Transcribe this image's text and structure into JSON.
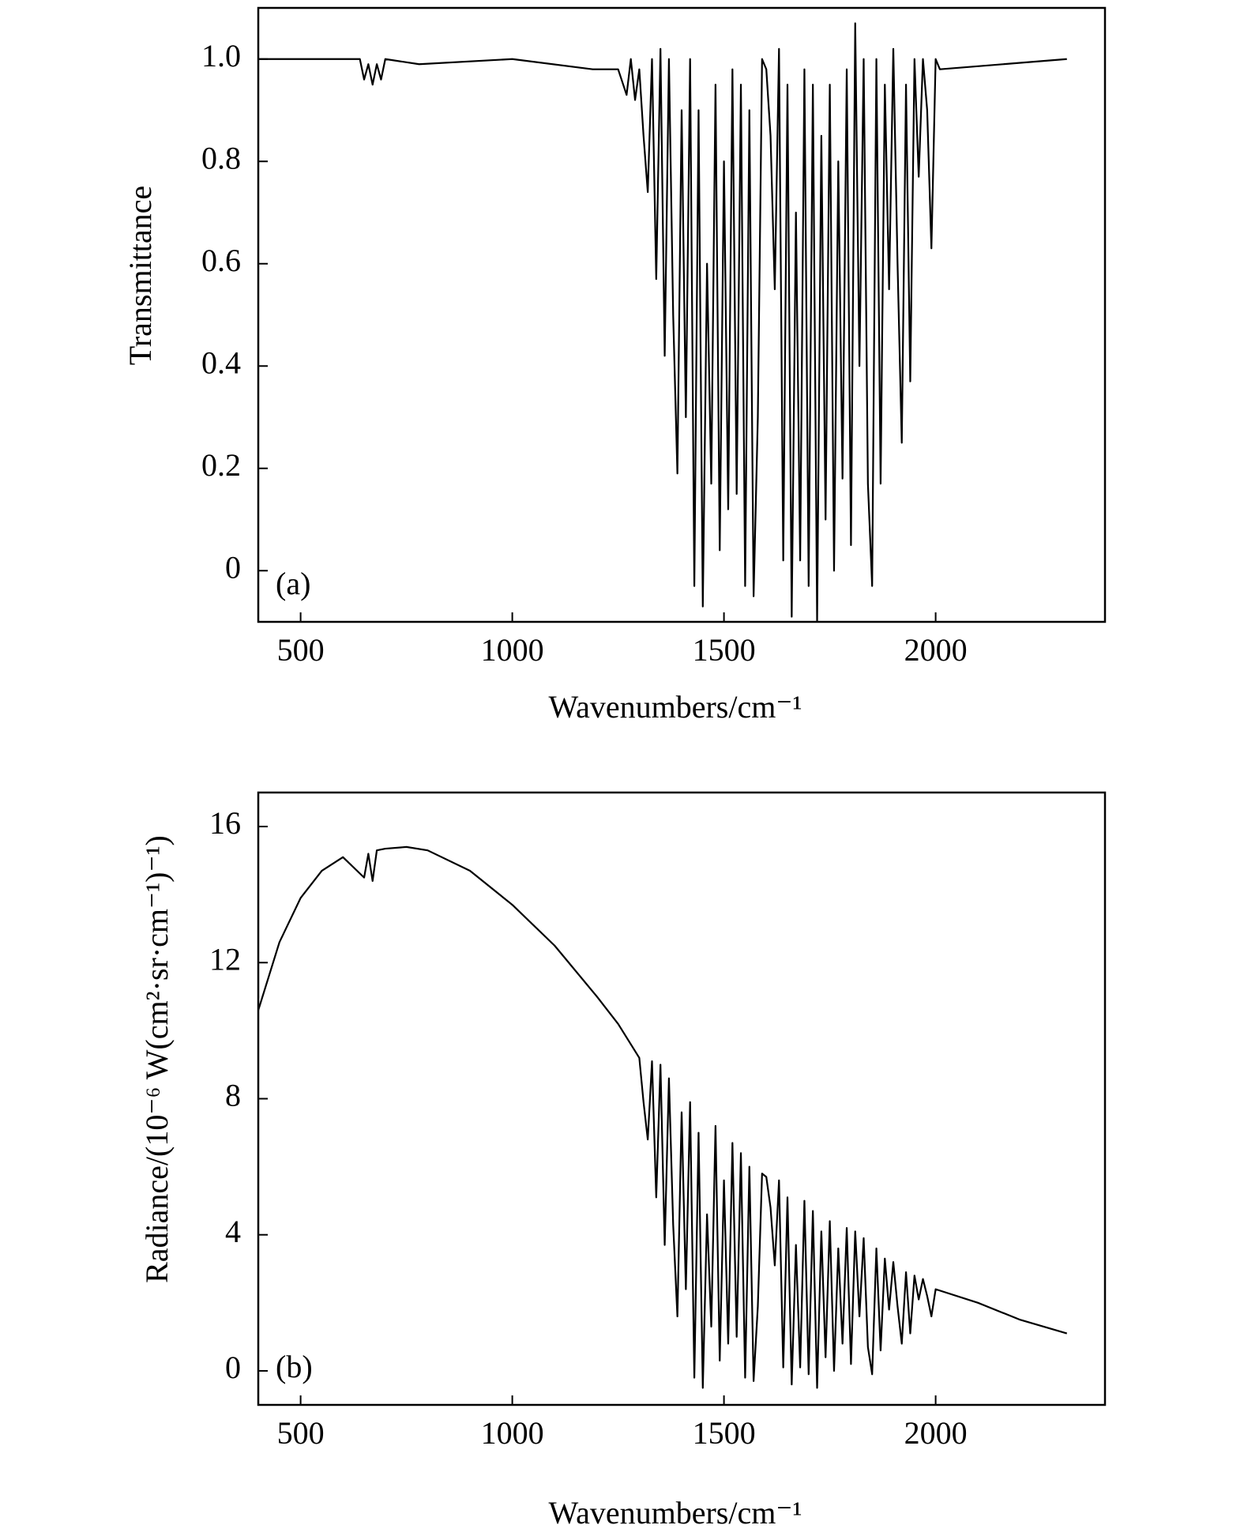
{
  "chart_data": [
    {
      "type": "line",
      "panel_label": "(a)",
      "xlabel": "Wavenumbers/cm⁻¹",
      "ylabel": "Transmittance",
      "xlim": [
        400,
        2400
      ],
      "xticks": [
        500,
        1000,
        1500,
        2000
      ],
      "ylim": [
        -0.1,
        1.1
      ],
      "yticks": [
        0,
        0.2,
        0.4,
        0.6,
        0.8,
        {
          "value": 1,
          "label": "1.0"
        }
      ],
      "x": [
        400,
        640,
        650,
        660,
        670,
        680,
        690,
        700,
        780,
        1000,
        1190,
        1250,
        1270,
        1280,
        1290,
        1300,
        1310,
        1320,
        1330,
        1340,
        1350,
        1360,
        1370,
        1380,
        1390,
        1400,
        1410,
        1420,
        1430,
        1440,
        1450,
        1460,
        1470,
        1480,
        1490,
        1500,
        1510,
        1520,
        1530,
        1540,
        1550,
        1560,
        1570,
        1580,
        1590,
        1600,
        1610,
        1620,
        1630,
        1640,
        1650,
        1660,
        1670,
        1680,
        1690,
        1700,
        1710,
        1720,
        1730,
        1740,
        1750,
        1760,
        1770,
        1780,
        1790,
        1800,
        1810,
        1820,
        1830,
        1840,
        1850,
        1860,
        1870,
        1880,
        1890,
        1900,
        1910,
        1920,
        1930,
        1940,
        1950,
        1960,
        1970,
        1980,
        1990,
        2000,
        2010,
        2310
      ],
      "series": [
        {
          "color": "#000000",
          "values": [
            1.0,
            1.0,
            0.96,
            0.99,
            0.95,
            0.99,
            0.96,
            1.0,
            0.99,
            1.0,
            0.98,
            0.98,
            0.93,
            1.0,
            0.92,
            0.98,
            0.85,
            0.74,
            1.0,
            0.57,
            1.02,
            0.42,
            1.0,
            0.5,
            0.19,
            0.9,
            0.3,
            1.0,
            -0.03,
            0.9,
            -0.07,
            0.6,
            0.17,
            0.95,
            0.04,
            0.8,
            0.12,
            0.98,
            0.15,
            0.95,
            -0.03,
            0.9,
            -0.05,
            0.3,
            1.0,
            0.98,
            0.85,
            0.55,
            1.02,
            0.02,
            0.95,
            -0.09,
            0.7,
            0.02,
            0.98,
            -0.03,
            0.95,
            -0.1,
            0.85,
            0.1,
            0.95,
            0.0,
            0.8,
            0.18,
            0.98,
            0.05,
            1.07,
            0.4,
            1.0,
            0.17,
            -0.03,
            1.0,
            0.17,
            0.95,
            0.55,
            1.02,
            0.6,
            0.25,
            0.95,
            0.37,
            1.0,
            0.77,
            1.0,
            0.9,
            0.63,
            1.0,
            0.98,
            1.0
          ]
        }
      ]
    },
    {
      "type": "line",
      "panel_label": "(b)",
      "xlabel": "Wavenumbers/cm⁻¹",
      "ylabel": "Radiance/(10⁻⁶ W(cm²·sr·cm⁻¹)⁻¹)",
      "xlim": [
        400,
        2400
      ],
      "xticks": [
        500,
        1000,
        1500,
        2000
      ],
      "ylim": [
        -1,
        17
      ],
      "yticks": [
        0,
        4,
        8,
        12,
        16
      ],
      "x": [
        400,
        450,
        500,
        550,
        600,
        650,
        660,
        670,
        680,
        700,
        750,
        800,
        900,
        1000,
        1100,
        1200,
        1250,
        1300,
        1310,
        1320,
        1330,
        1340,
        1350,
        1360,
        1370,
        1380,
        1390,
        1400,
        1410,
        1420,
        1430,
        1440,
        1450,
        1460,
        1470,
        1480,
        1490,
        1500,
        1510,
        1520,
        1530,
        1540,
        1550,
        1560,
        1570,
        1580,
        1590,
        1600,
        1610,
        1620,
        1630,
        1640,
        1650,
        1660,
        1670,
        1680,
        1690,
        1700,
        1710,
        1720,
        1730,
        1740,
        1750,
        1760,
        1770,
        1780,
        1790,
        1800,
        1810,
        1820,
        1830,
        1840,
        1850,
        1860,
        1870,
        1880,
        1890,
        1900,
        1910,
        1920,
        1930,
        1940,
        1950,
        1960,
        1970,
        1980,
        1990,
        2000,
        2100,
        2200,
        2310
      ],
      "series": [
        {
          "color": "#000000",
          "values": [
            10.6,
            12.6,
            13.9,
            14.7,
            15.1,
            14.5,
            15.2,
            14.4,
            15.3,
            15.35,
            15.4,
            15.3,
            14.7,
            13.7,
            12.5,
            11.0,
            10.2,
            9.2,
            7.9,
            6.8,
            9.1,
            5.1,
            9.0,
            3.7,
            8.6,
            4.3,
            1.6,
            7.6,
            2.4,
            7.9,
            -0.2,
            7.0,
            -0.5,
            4.6,
            1.3,
            7.2,
            0.3,
            5.6,
            0.8,
            6.7,
            1.0,
            6.4,
            -0.2,
            6.0,
            -0.3,
            1.9,
            5.8,
            5.7,
            4.8,
            3.1,
            5.6,
            0.1,
            5.1,
            -0.4,
            3.7,
            0.1,
            5.0,
            -0.1,
            4.7,
            -0.5,
            4.1,
            0.4,
            4.4,
            0.0,
            3.6,
            0.8,
            4.2,
            0.2,
            4.1,
            1.6,
            3.9,
            0.7,
            -0.1,
            3.6,
            0.6,
            3.3,
            1.8,
            3.2,
            1.9,
            0.8,
            2.9,
            1.1,
            2.8,
            2.1,
            2.7,
            2.2,
            1.6,
            2.4,
            2.0,
            1.5,
            1.1
          ]
        }
      ]
    }
  ]
}
